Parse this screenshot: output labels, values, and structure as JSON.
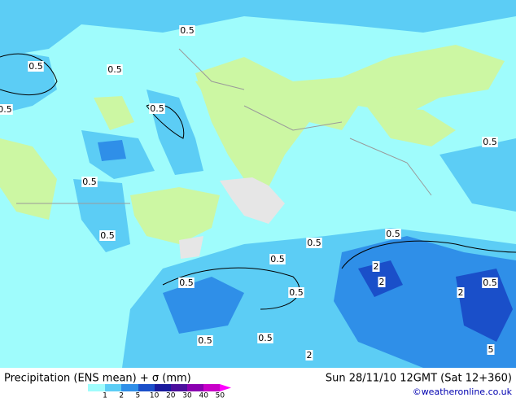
{
  "title": "Precipitation (ENS mean) + σ (mm)",
  "valid_time": "Sun 28/11/10 12GMT (Sat 12+360)",
  "credit": "©weatheronline.co.uk",
  "legend": {
    "labels": [
      "1",
      "2",
      "5",
      "10",
      "20",
      "30",
      "40",
      "50"
    ]
  },
  "contour_labels": [
    "0.5",
    "0.5",
    "0.5",
    "0.5",
    "0.5",
    "0.5",
    "0.5",
    "0.5",
    "0.5",
    "0.5",
    "0.5",
    "0.5",
    "0.5",
    "0.5",
    "0.5",
    "0.5",
    "2",
    "2",
    "2",
    "2",
    "5"
  ]
}
